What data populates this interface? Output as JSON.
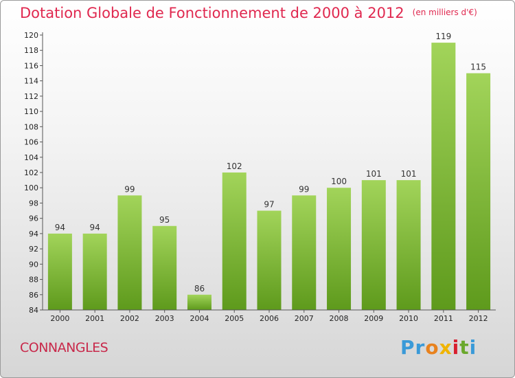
{
  "header": {
    "title": "Dotation Globale de Fonctionnement de 2000 à 2012",
    "unit": "(en milliers d'€)"
  },
  "footer": {
    "commune": "CONNANGLES",
    "logo": [
      "Pr",
      "o",
      "x",
      "i",
      "t",
      "i"
    ]
  },
  "colors": {
    "bar_top": "#a2d45a",
    "bar_bottom": "#5e9a1c",
    "title": "#e0284f",
    "axis": "#555555"
  },
  "chart_data": {
    "type": "bar",
    "categories": [
      "2000",
      "2001",
      "2002",
      "2003",
      "2004",
      "2005",
      "2006",
      "2007",
      "2008",
      "2009",
      "2010",
      "2011",
      "2012"
    ],
    "values": [
      94,
      94,
      99,
      95,
      86,
      102,
      97,
      99,
      100,
      101,
      101,
      119,
      115
    ],
    "ylim": [
      84,
      120
    ],
    "yticks": [
      84,
      86,
      88,
      90,
      92,
      94,
      96,
      98,
      100,
      102,
      104,
      106,
      108,
      110,
      112,
      114,
      116,
      118,
      120
    ],
    "grid": false,
    "legend": "none",
    "data_labels": true
  }
}
